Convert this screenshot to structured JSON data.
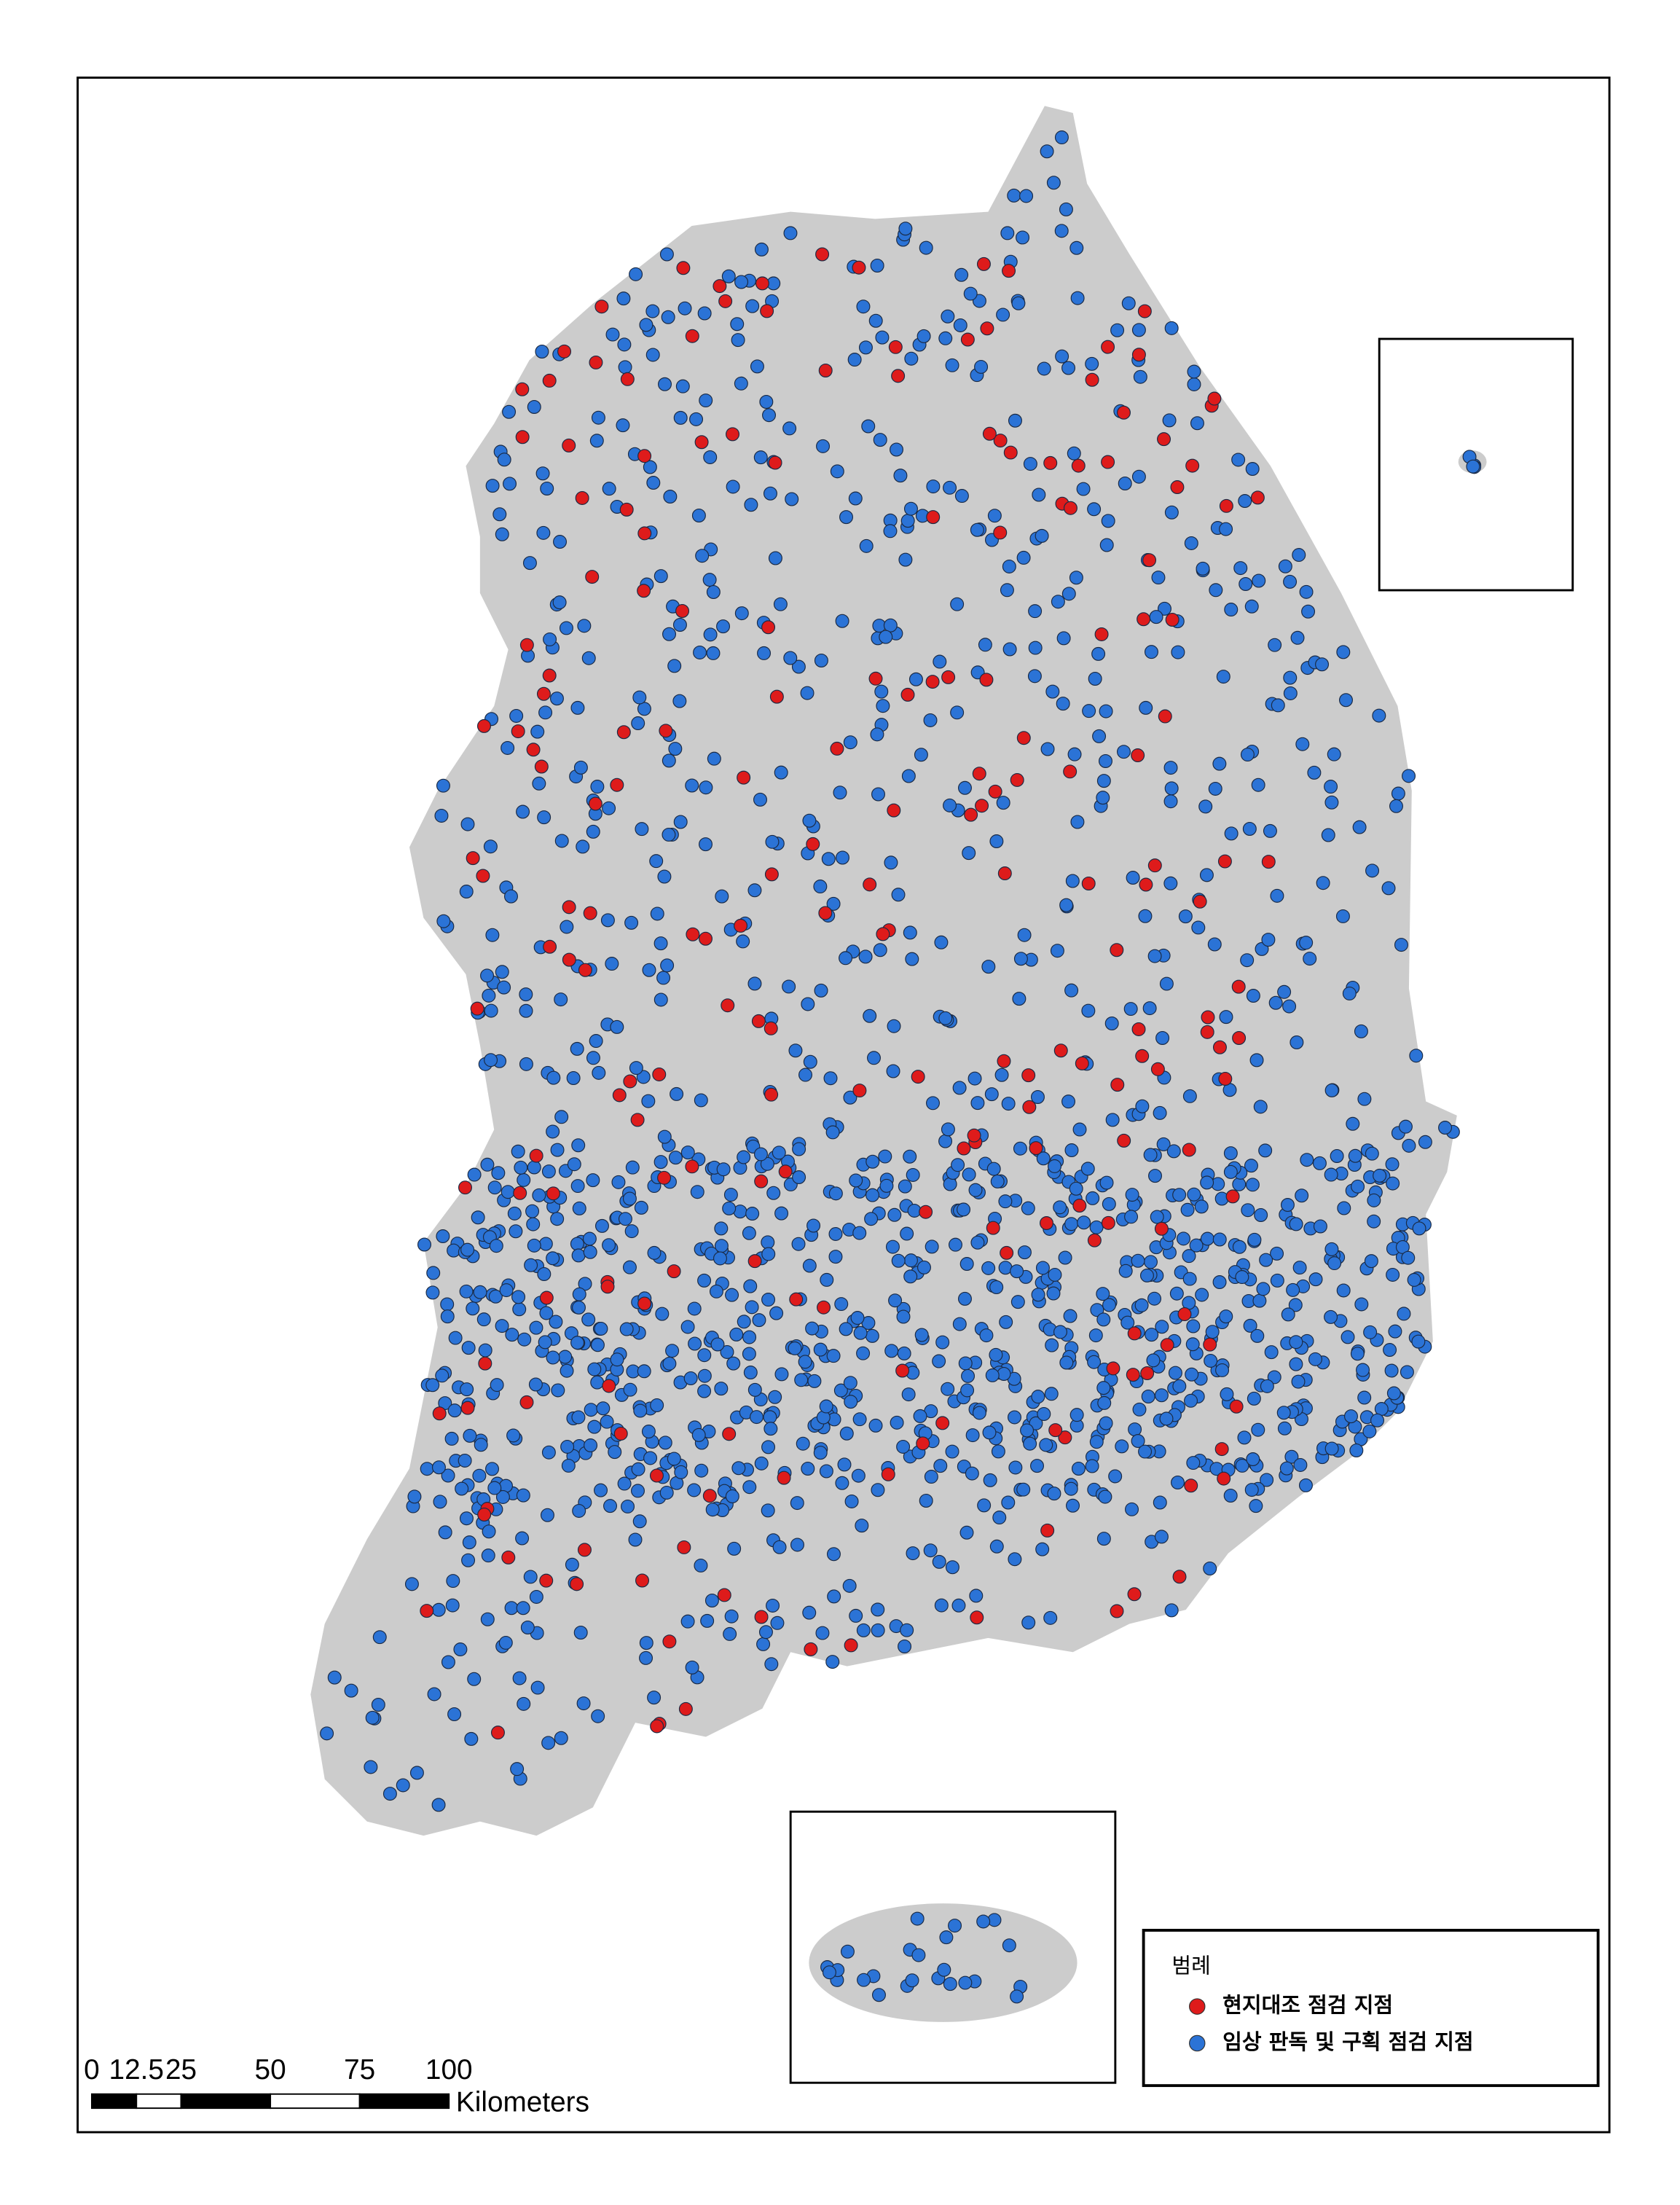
{
  "legend": {
    "title": "범례",
    "items": [
      {
        "label": "현지대조 점검 지점",
        "color": "#de1b1b"
      },
      {
        "label": "임상 판독 및 구획 점검 지점",
        "color": "#2b73d6"
      }
    ]
  },
  "scale_bar": {
    "ticks": [
      0,
      12.5,
      25,
      50,
      75,
      100
    ],
    "unit": "Kilometers"
  }
}
